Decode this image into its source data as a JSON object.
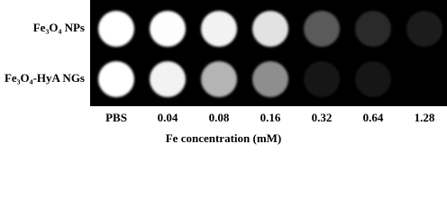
{
  "figure": {
    "rows": [
      {
        "label": "Fe₃O₄ NPs",
        "spot_colors": [
          "#ffffff",
          "#fdfdfd",
          "#f2f2f2",
          "#e2e2e2",
          "#5a5a5a",
          "#2a2a2a",
          "#1c1c1c"
        ]
      },
      {
        "label": "Fe₃O₄-HyA NGs",
        "spot_colors": [
          "#ffffff",
          "#f2f2f2",
          "#b4b4b4",
          "#8e8e8e",
          "#181818",
          "#121212",
          "#060606"
        ]
      }
    ],
    "columns": [
      "PBS",
      "0.04",
      "0.08",
      "0.16",
      "0.32",
      "0.64",
      "1.28"
    ],
    "x_label": "Fe concentration (mM)"
  }
}
